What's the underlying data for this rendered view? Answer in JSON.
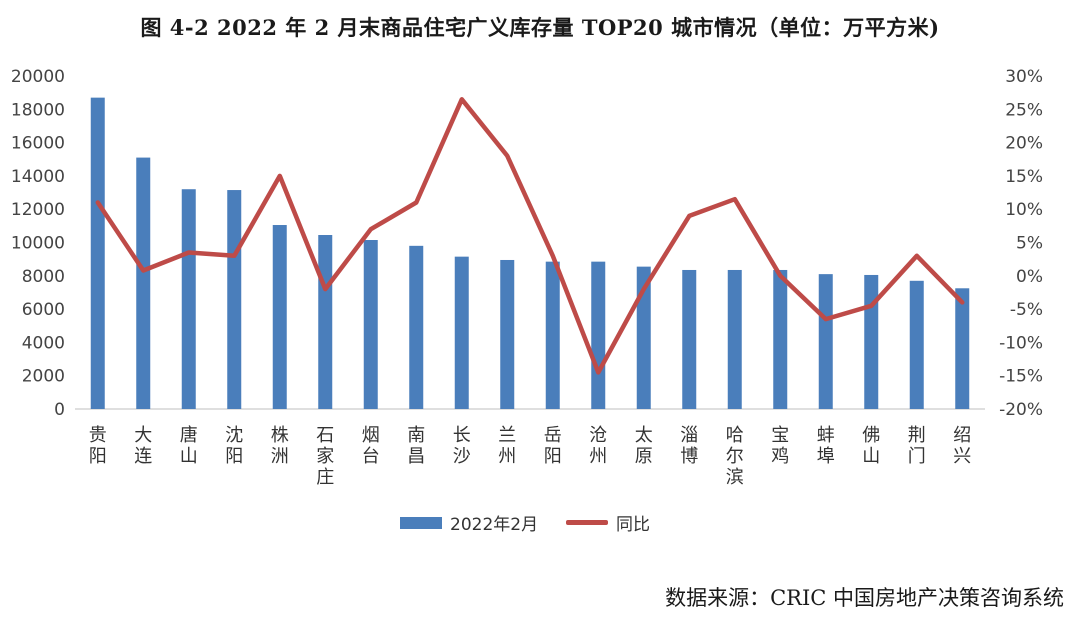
{
  "title": "图 4-2 2022 年 2 月末商品住宅广义库存量 TOP20 城市情况（单位：万平方米)",
  "source": "数据来源：CRIC 中国房地产决策咨询系统",
  "colors": {
    "bar": "#4a7ebb",
    "line": "#be4b48"
  },
  "chart_data": {
    "type": "bar",
    "categories": [
      "贵阳",
      "大连",
      "唐山",
      "沈阳",
      "株洲",
      "石家庄",
      "烟台",
      "南昌",
      "长沙",
      "兰州",
      "岳阳",
      "沧州",
      "太原",
      "淄博",
      "哈尔滨",
      "宝鸡",
      "蚌埠",
      "佛山",
      "荆门",
      "绍兴"
    ],
    "series": [
      {
        "name": "2022年2月",
        "type": "bar",
        "axis": "left",
        "values": [
          18700,
          15100,
          13200,
          13150,
          11050,
          10450,
          10150,
          9800,
          9150,
          8950,
          8850,
          8850,
          8550,
          8350,
          8350,
          8350,
          8100,
          8050,
          7700,
          7250
        ]
      },
      {
        "name": "同比",
        "type": "line",
        "axis": "right",
        "unit": "%",
        "values": [
          11,
          0.8,
          3.5,
          3,
          15,
          -2,
          7,
          11,
          26.5,
          18,
          3,
          -14.5,
          -2,
          9,
          11.5,
          0,
          -6.5,
          -4.5,
          3,
          -4
        ]
      }
    ],
    "yleft": {
      "ylim": [
        0,
        20000
      ],
      "ticks": [
        "0",
        "2000",
        "4000",
        "6000",
        "8000",
        "10000",
        "12000",
        "14000",
        "16000",
        "18000",
        "20000"
      ]
    },
    "yright": {
      "ylim": [
        -20,
        30
      ],
      "ticks": [
        "-20%",
        "-15%",
        "-10%",
        "-5%",
        "0%",
        "5%",
        "10%",
        "15%",
        "20%",
        "25%",
        "30%"
      ]
    },
    "legend": "bottom",
    "grid": false
  }
}
